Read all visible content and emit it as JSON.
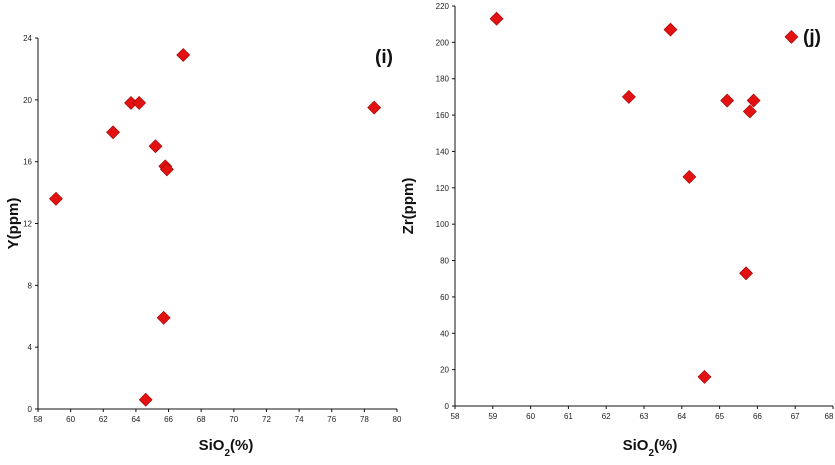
{
  "chart_data": [
    {
      "type": "scatter",
      "panel_label": "(i)",
      "xlabel": "SiO2(%)",
      "xlabel_main": "SiO",
      "xlabel_sub": "2",
      "xlabel_tail": "(%)",
      "ylabel": "Y(ppm)",
      "xlim": [
        58,
        80
      ],
      "ylim": [
        0,
        24
      ],
      "xticks": [
        58,
        60,
        62,
        64,
        66,
        68,
        70,
        72,
        74,
        76,
        78,
        80
      ],
      "yticks": [
        0,
        4,
        8,
        12,
        16,
        20,
        24
      ],
      "marker": "diamond",
      "marker_color": "#e31212",
      "points": [
        {
          "x": 59.1,
          "y": 13.6
        },
        {
          "x": 62.6,
          "y": 17.9
        },
        {
          "x": 63.7,
          "y": 19.8
        },
        {
          "x": 64.2,
          "y": 19.8
        },
        {
          "x": 64.6,
          "y": 0.6
        },
        {
          "x": 65.2,
          "y": 17.0
        },
        {
          "x": 65.7,
          "y": 5.9
        },
        {
          "x": 65.8,
          "y": 15.7
        },
        {
          "x": 65.9,
          "y": 15.5
        },
        {
          "x": 66.9,
          "y": 22.9
        },
        {
          "x": 78.6,
          "y": 19.5
        }
      ]
    },
    {
      "type": "scatter",
      "panel_label": "(j)",
      "xlabel": "SiO2(%)",
      "xlabel_main": "SiO",
      "xlabel_sub": "2",
      "xlabel_tail": "(%)",
      "ylabel": "Zr(ppm)",
      "xlim": [
        58,
        68
      ],
      "ylim": [
        0,
        220
      ],
      "xticks": [
        58,
        59,
        60,
        61,
        62,
        63,
        64,
        65,
        66,
        67,
        68
      ],
      "xtick_labels": [
        "58",
        "59",
        "60",
        "61",
        "62",
        "63",
        "64",
        "65",
        "66",
        "67",
        "68"
      ],
      "yticks": [
        0,
        20,
        40,
        60,
        80,
        100,
        120,
        140,
        160,
        180,
        200,
        220
      ],
      "marker": "diamond",
      "marker_color": "#e31212",
      "points": [
        {
          "x": 59.1,
          "y": 213
        },
        {
          "x": 62.6,
          "y": 170
        },
        {
          "x": 63.7,
          "y": 207
        },
        {
          "x": 64.2,
          "y": 126
        },
        {
          "x": 64.6,
          "y": 16
        },
        {
          "x": 65.2,
          "y": 168
        },
        {
          "x": 65.7,
          "y": 73
        },
        {
          "x": 65.8,
          "y": 162
        },
        {
          "x": 65.9,
          "y": 168
        },
        {
          "x": 66.9,
          "y": 203
        }
      ]
    }
  ]
}
